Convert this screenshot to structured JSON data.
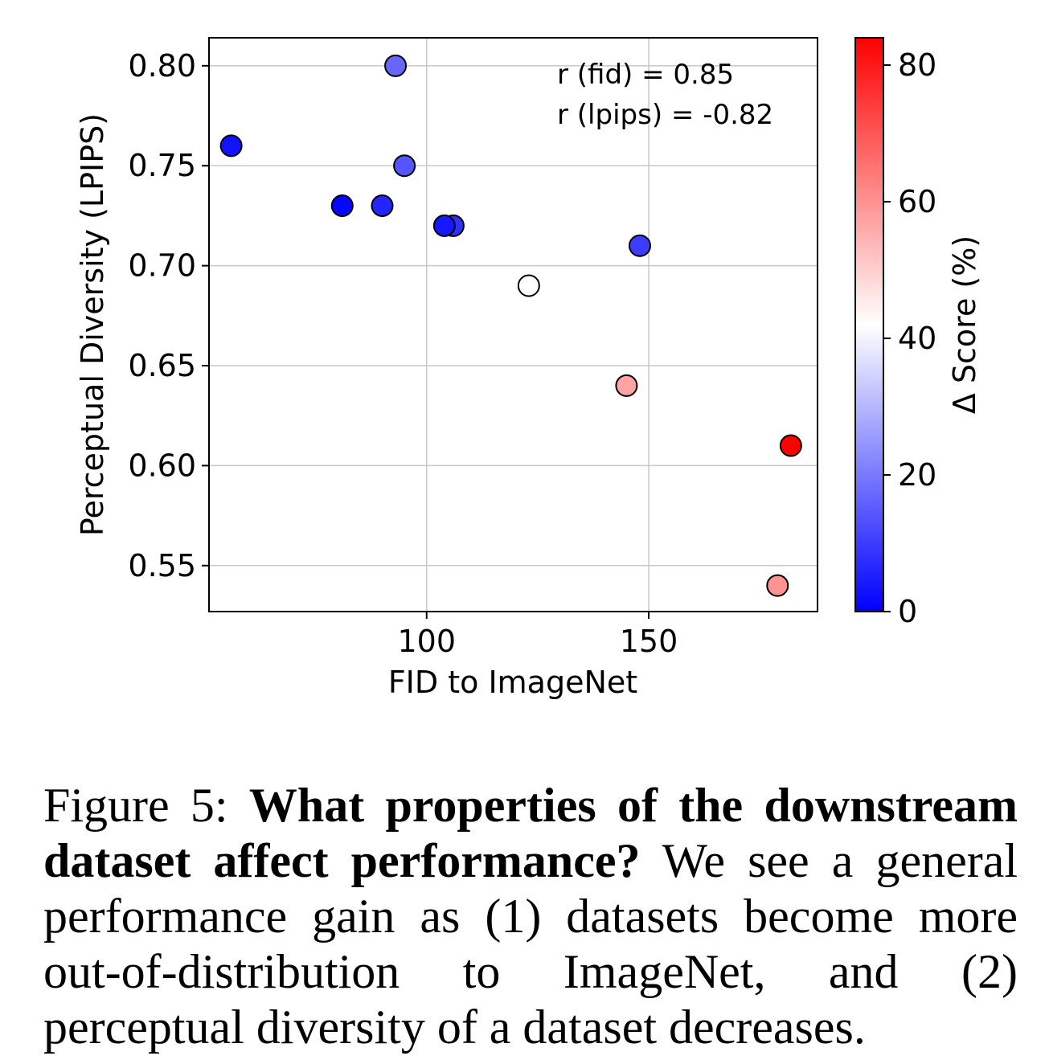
{
  "chart_data": {
    "type": "scatter",
    "xlabel": "FID to ImageNet",
    "ylabel": "Perceptual Diversity (LPIPS)",
    "xlim": [
      51,
      188
    ],
    "ylim": [
      0.527,
      0.814
    ],
    "xticks": [
      100,
      150
    ],
    "yticks": [
      0.55,
      0.6,
      0.65,
      0.7,
      0.75,
      0.8
    ],
    "grid": true,
    "annotations": [
      "r (fid) = 0.85",
      "r (lpips) = -0.82"
    ],
    "colorbar": {
      "label": "Δ Score (%)",
      "ticks": [
        0,
        20,
        40,
        60,
        80
      ],
      "range": [
        0,
        84
      ],
      "colormap": "bwr",
      "low_color": "#0000ff",
      "mid_color": "#ffffff",
      "high_color": "#ff0000"
    },
    "points": [
      {
        "x": 56,
        "y": 0.76,
        "c": 3
      },
      {
        "x": 93,
        "y": 0.8,
        "c": 17
      },
      {
        "x": 95,
        "y": 0.75,
        "c": 14
      },
      {
        "x": 81,
        "y": 0.73,
        "c": 1
      },
      {
        "x": 90,
        "y": 0.73,
        "c": 6
      },
      {
        "x": 106,
        "y": 0.72,
        "c": 8
      },
      {
        "x": 104,
        "y": 0.72,
        "c": 4
      },
      {
        "x": 148,
        "y": 0.71,
        "c": 10
      },
      {
        "x": 123,
        "y": 0.69,
        "c": 42
      },
      {
        "x": 145,
        "y": 0.64,
        "c": 57
      },
      {
        "x": 182,
        "y": 0.61,
        "c": 84
      },
      {
        "x": 179,
        "y": 0.54,
        "c": 60
      }
    ]
  },
  "caption": {
    "label": "Figure 5:",
    "title": "What properties of the downstream dataset affect performance?",
    "body": "We see a general performance gain as (1) datasets become more out-of-distribution to ImageNet, and (2) perceptual diversity of a dataset decreases."
  }
}
